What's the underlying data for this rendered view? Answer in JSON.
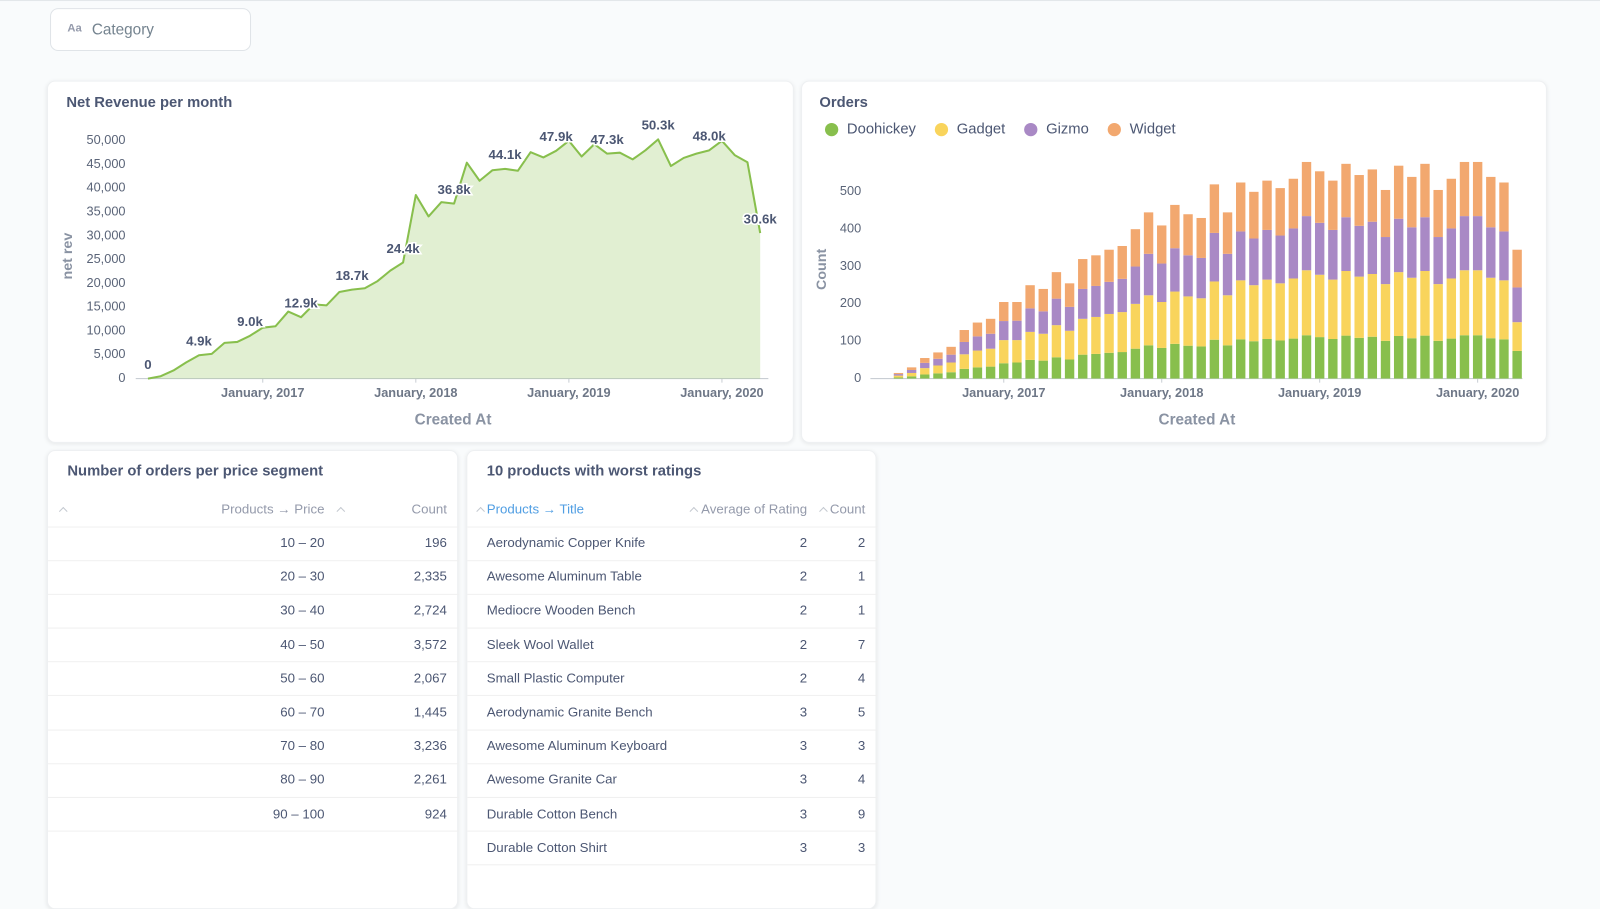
{
  "filter": {
    "icon": "Aa",
    "label": "Category"
  },
  "chart_data": [
    {
      "type": "line",
      "title": "Net Revenue per month",
      "x": [
        "2016-04",
        "2016-05",
        "2016-06",
        "2016-07",
        "2016-08",
        "2016-09",
        "2016-10",
        "2016-11",
        "2016-12",
        "2017-01",
        "2017-02",
        "2017-03",
        "2017-04",
        "2017-05",
        "2017-06",
        "2017-07",
        "2017-08",
        "2017-09",
        "2017-10",
        "2017-11",
        "2017-12",
        "2018-01",
        "2018-02",
        "2018-03",
        "2018-04",
        "2018-05",
        "2018-06",
        "2018-07",
        "2018-08",
        "2018-09",
        "2018-10",
        "2018-11",
        "2018-12",
        "2019-01",
        "2019-02",
        "2019-03",
        "2019-04",
        "2019-05",
        "2019-06",
        "2019-07",
        "2019-08",
        "2019-09",
        "2019-10",
        "2019-11",
        "2019-12",
        "2020-01",
        "2020-02",
        "2020-03",
        "2020-04"
      ],
      "values": [
        0,
        500,
        1700,
        3400,
        4900,
        5200,
        7500,
        7700,
        9000,
        10700,
        11000,
        14100,
        12900,
        15600,
        15400,
        18200,
        18700,
        19000,
        20500,
        22700,
        24400,
        38600,
        34100,
        37100,
        36800,
        45400,
        41600,
        43800,
        44100,
        43700,
        47600,
        46500,
        47900,
        50000,
        46700,
        49300,
        47300,
        47500,
        46100,
        48000,
        50300,
        44700,
        46400,
        47300,
        48000,
        50000,
        47000,
        45500,
        30600
      ],
      "value_labels": [
        "0",
        null,
        null,
        null,
        "4.9k",
        null,
        null,
        null,
        "9.0k",
        null,
        null,
        null,
        "12.9k",
        null,
        null,
        null,
        "18.7k",
        null,
        null,
        null,
        "24.4k",
        null,
        null,
        null,
        "36.8k",
        null,
        null,
        null,
        "44.1k",
        null,
        null,
        null,
        "47.9k",
        null,
        null,
        null,
        "47.3k",
        null,
        null,
        null,
        "50.3k",
        null,
        null,
        null,
        "48.0k",
        null,
        null,
        null,
        "30.6k"
      ],
      "color": "#88bf4d",
      "ylim": [
        0,
        50000
      ],
      "yticks": [
        0,
        {
          "value": 5000,
          "label": "5,000"
        },
        {
          "value": 10000,
          "label": "10,000"
        },
        {
          "value": 15000,
          "label": "15,000"
        },
        {
          "value": 20000,
          "label": "20,000"
        },
        {
          "value": 25000,
          "label": "25,000"
        },
        {
          "value": 30000,
          "label": "30,000"
        },
        {
          "value": 35000,
          "label": "35,000"
        },
        {
          "value": 40000,
          "label": "40,000"
        },
        {
          "value": 45000,
          "label": "45,000"
        },
        {
          "value": 50000,
          "label": "50,000"
        }
      ],
      "xticks": [
        {
          "value": "2017-01",
          "label": "January, 2017"
        },
        {
          "value": "2018-01",
          "label": "January, 2018"
        },
        {
          "value": "2019-01",
          "label": "January, 2019"
        },
        {
          "value": "2020-01",
          "label": "January, 2020"
        }
      ],
      "xlabel": "Created At",
      "ylabel": "net rev"
    },
    {
      "type": "stacked-bar",
      "title": "Orders",
      "x": [
        "2016-05",
        "2016-06",
        "2016-07",
        "2016-08",
        "2016-09",
        "2016-10",
        "2016-11",
        "2016-12",
        "2017-01",
        "2017-02",
        "2017-03",
        "2017-04",
        "2017-05",
        "2017-06",
        "2017-07",
        "2017-08",
        "2017-09",
        "2017-10",
        "2017-11",
        "2017-12",
        "2018-01",
        "2018-02",
        "2018-03",
        "2018-04",
        "2018-05",
        "2018-06",
        "2018-07",
        "2018-08",
        "2018-09",
        "2018-10",
        "2018-11",
        "2018-12",
        "2019-01",
        "2019-02",
        "2019-03",
        "2019-04",
        "2019-05",
        "2019-06",
        "2019-07",
        "2019-08",
        "2019-09",
        "2019-10",
        "2019-11",
        "2019-12",
        "2020-01",
        "2020-02",
        "2020-03",
        "2020-04"
      ],
      "series": [
        {
          "name": "Doohickey",
          "color": "#88bf4d",
          "values": [
            3,
            6,
            11,
            14,
            17,
            26,
            30,
            32,
            41,
            43,
            50,
            48,
            57,
            51,
            64,
            66,
            69,
            71,
            80,
            89,
            82,
            93,
            88,
            86,
            104,
            89,
            105,
            100,
            106,
            102,
            107,
            116,
            111,
            106,
            115,
            109,
            112,
            101,
            114,
            108,
            115,
            101,
            107,
            116,
            116,
            108,
            105,
            74
          ]
        },
        {
          "name": "Gadget",
          "color": "#f9d45c",
          "values": [
            5,
            9,
            17,
            21,
            26,
            39,
            45,
            48,
            62,
            60,
            75,
            72,
            86,
            77,
            96,
            99,
            104,
            107,
            120,
            134,
            123,
            140,
            132,
            129,
            156,
            134,
            158,
            150,
            159,
            153,
            161,
            174,
            167,
            159,
            173,
            164,
            168,
            152,
            171,
            162,
            173,
            152,
            161,
            174,
            174,
            162,
            158,
            77
          ]
        },
        {
          "name": "Gizmo",
          "color": "#a989c5",
          "values": [
            4,
            8,
            14,
            18,
            21,
            33,
            38,
            40,
            51,
            52,
            63,
            60,
            71,
            64,
            80,
            83,
            86,
            89,
            100,
            111,
            103,
            116,
            110,
            108,
            130,
            111,
            131,
            125,
            133,
            128,
            134,
            145,
            139,
            133,
            144,
            136,
            140,
            126,
            143,
            135,
            144,
            126,
            134,
            145,
            145,
            135,
            131,
            93
          ]
        },
        {
          "name": "Widget",
          "color": "#f2a86f",
          "values": [
            3,
            7,
            13,
            17,
            21,
            32,
            37,
            40,
            51,
            50,
            62,
            60,
            71,
            63,
            80,
            82,
            86,
            88,
            100,
            111,
            102,
            116,
            110,
            107,
            130,
            111,
            131,
            125,
            132,
            127,
            133,
            145,
            138,
            132,
            143,
            136,
            140,
            126,
            142,
            135,
            143,
            126,
            133,
            145,
            145,
            135,
            131,
            101
          ]
        }
      ],
      "ylim": [
        0,
        600
      ],
      "yticks": [
        0,
        100,
        200,
        300,
        400,
        500
      ],
      "xticks": [
        {
          "value": "2017-01",
          "label": "January, 2017"
        },
        {
          "value": "2018-01",
          "label": "January, 2018"
        },
        {
          "value": "2019-01",
          "label": "January, 2019"
        },
        {
          "value": "2020-01",
          "label": "January, 2020"
        }
      ],
      "xlabel": "Created At",
      "ylabel": "Count",
      "legend": "top-left"
    }
  ],
  "tables": [
    {
      "title": "Number of orders per price segment",
      "columns": [
        "Products → Price",
        "Count"
      ],
      "rows": [
        [
          "10 – 20",
          "196"
        ],
        [
          "20 – 30",
          "2,335"
        ],
        [
          "30 – 40",
          "2,724"
        ],
        [
          "40 – 50",
          "3,572"
        ],
        [
          "50 – 60",
          "2,067"
        ],
        [
          "60 – 70",
          "1,445"
        ],
        [
          "70 – 80",
          "3,236"
        ],
        [
          "80 – 90",
          "2,261"
        ],
        [
          "90 – 100",
          "924"
        ]
      ]
    },
    {
      "title": "10 products with worst ratings",
      "columns": [
        "Products → Title",
        "Average of Rating",
        "Count"
      ],
      "rows": [
        [
          "Aerodynamic Copper Knife",
          "2",
          "2"
        ],
        [
          "Awesome Aluminum Table",
          "2",
          "1"
        ],
        [
          "Mediocre Wooden Bench",
          "2",
          "1"
        ],
        [
          "Sleek Wool Wallet",
          "2",
          "7"
        ],
        [
          "Small Plastic Computer",
          "2",
          "4"
        ],
        [
          "Aerodynamic Granite Bench",
          "3",
          "5"
        ],
        [
          "Awesome Aluminum Keyboard",
          "3",
          "3"
        ],
        [
          "Awesome Granite Car",
          "3",
          "4"
        ],
        [
          "Durable Cotton Bench",
          "3",
          "9"
        ],
        [
          "Durable Cotton Shirt",
          "3",
          "3"
        ]
      ]
    }
  ]
}
